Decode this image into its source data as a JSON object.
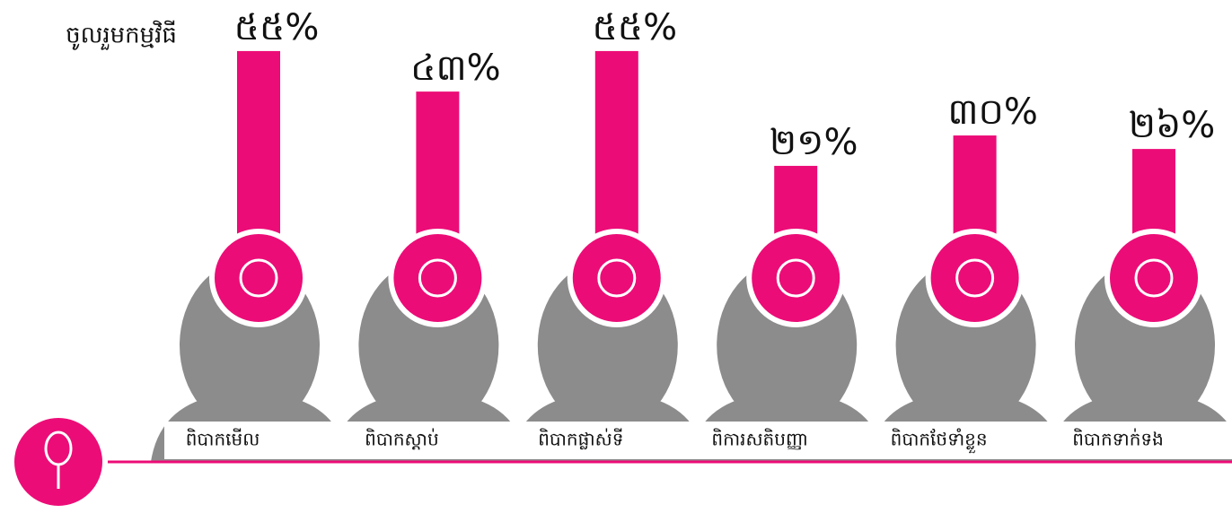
{
  "chart_data": {
    "type": "bar",
    "title": "ចូលរួមកម្មវិធី",
    "categories": [
      "ពិបាកមើល",
      "ពិបាកស្តាប់",
      "ពិបាកផ្លាស់ទី",
      "ពិការសតិបញ្ញា",
      "ពិបាកថែទាំខ្លួន",
      "ពិបាកទាក់ទង"
    ],
    "values": [
      55,
      43,
      55,
      21,
      30,
      26
    ],
    "value_labels": [
      "៥៥%",
      "៤៣%",
      "៥៥%",
      "២១%",
      "៣០%",
      "២៦%"
    ],
    "color": "#ec0c77"
  }
}
